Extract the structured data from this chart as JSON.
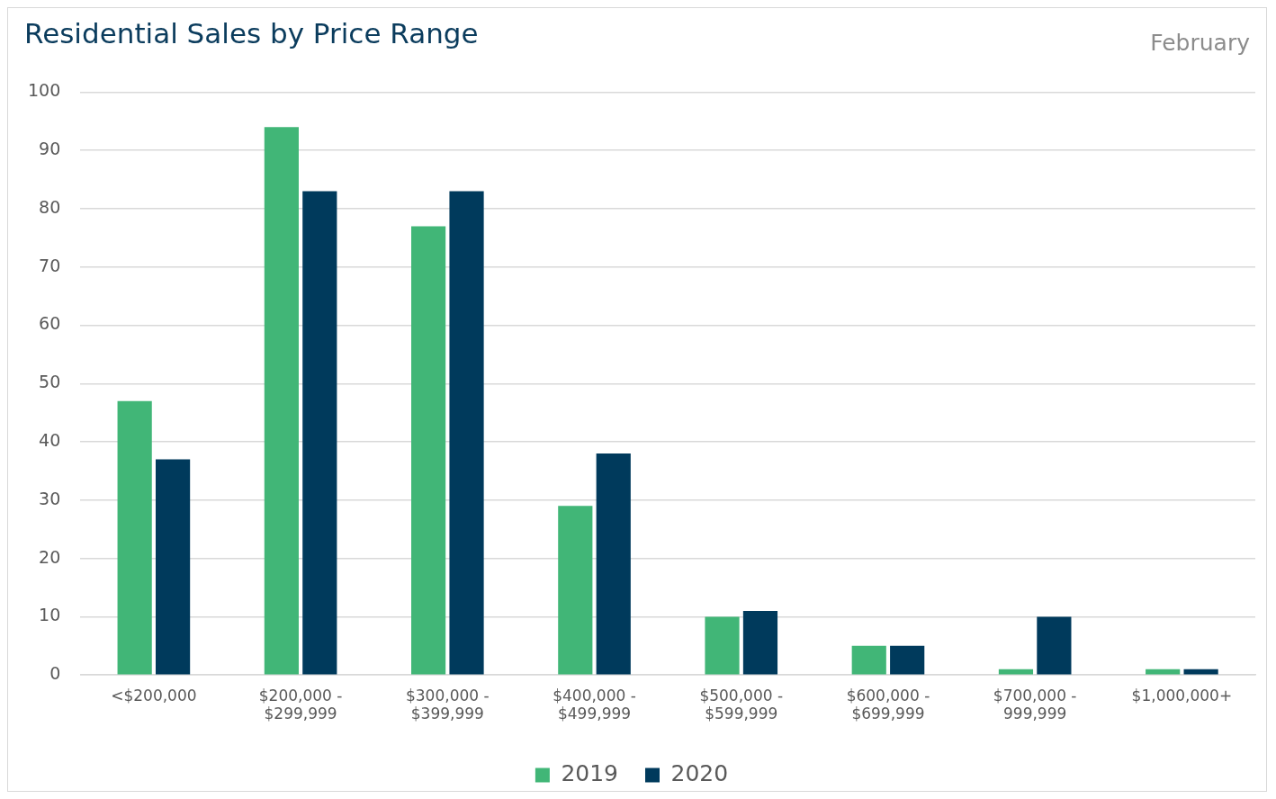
{
  "chart_data": {
    "type": "bar",
    "title": "Residential Sales by Price Range",
    "subtitle": "February",
    "categories": [
      "<$200,000",
      "$200,000 - $299,999",
      "$300,000 - $399,999",
      "$400,000 - $499,999",
      "$500,000 - $599,999",
      "$600,000 - $699,999",
      "$700,000 - 999,999",
      "$1,000,000+"
    ],
    "series": [
      {
        "name": "2019",
        "color": "#41b677",
        "values": [
          47,
          94,
          77,
          29,
          10,
          5,
          1,
          1
        ]
      },
      {
        "name": "2020",
        "color": "#003a5c",
        "values": [
          37,
          83,
          83,
          38,
          11,
          5,
          10,
          1
        ]
      }
    ],
    "ylim": [
      0,
      100
    ],
    "yticks": [
      0,
      10,
      20,
      30,
      40,
      50,
      60,
      70,
      80,
      90,
      100
    ],
    "grid": "y",
    "legend": "bottom"
  }
}
